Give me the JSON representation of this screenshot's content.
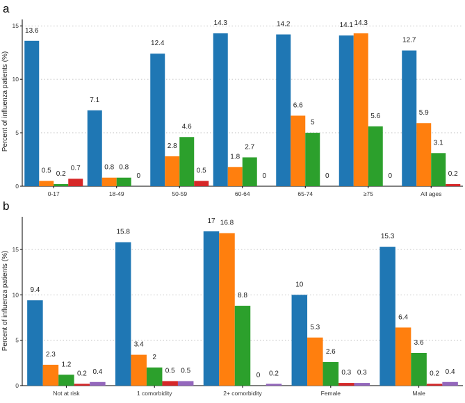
{
  "colors": [
    "#1f77b4",
    "#ff7f0e",
    "#2ca02c",
    "#d62728",
    "#9467bd"
  ],
  "chart_data": [
    {
      "type": "bar",
      "panel": "a",
      "ylabel": "Percent of influenza patients (%)",
      "ylim": [
        0,
        15.6
      ],
      "yticks": [
        0,
        5,
        10,
        15
      ],
      "grid": true,
      "categories": [
        "0-17",
        "18-49",
        "50-59",
        "60-64",
        "65-74",
        "≥75",
        "All ages"
      ],
      "series": [
        {
          "values": [
            13.6,
            7.1,
            12.4,
            14.3,
            14.2,
            14.1,
            12.7
          ]
        },
        {
          "values": [
            0.5,
            0.8,
            2.8,
            1.8,
            6.6,
            14.3,
            5.9
          ]
        },
        {
          "values": [
            0.2,
            0.8,
            4.6,
            2.7,
            5,
            5.6,
            3.1
          ]
        },
        {
          "values": [
            0.7,
            0,
            0.5,
            0,
            0,
            0,
            0.2
          ]
        }
      ]
    },
    {
      "type": "bar",
      "panel": "b",
      "ylabel": "Percent of influenza patients (%)",
      "ylim": [
        0,
        18.6
      ],
      "yticks": [
        0,
        5,
        10,
        15
      ],
      "grid": true,
      "categories": [
        "Not at risk",
        "1 comorbidity",
        "2+ comorbidity",
        "Female",
        "Male"
      ],
      "series": [
        {
          "values": [
            9.4,
            15.8,
            17,
            10,
            15.3
          ]
        },
        {
          "values": [
            2.3,
            3.4,
            16.8,
            5.3,
            6.4
          ]
        },
        {
          "values": [
            1.2,
            2,
            8.8,
            2.6,
            3.6
          ]
        },
        {
          "values": [
            0.2,
            0.5,
            0,
            0.3,
            0.2
          ]
        },
        {
          "values": [
            0.4,
            0.5,
            0.2,
            0.3,
            0.4
          ]
        }
      ]
    }
  ]
}
